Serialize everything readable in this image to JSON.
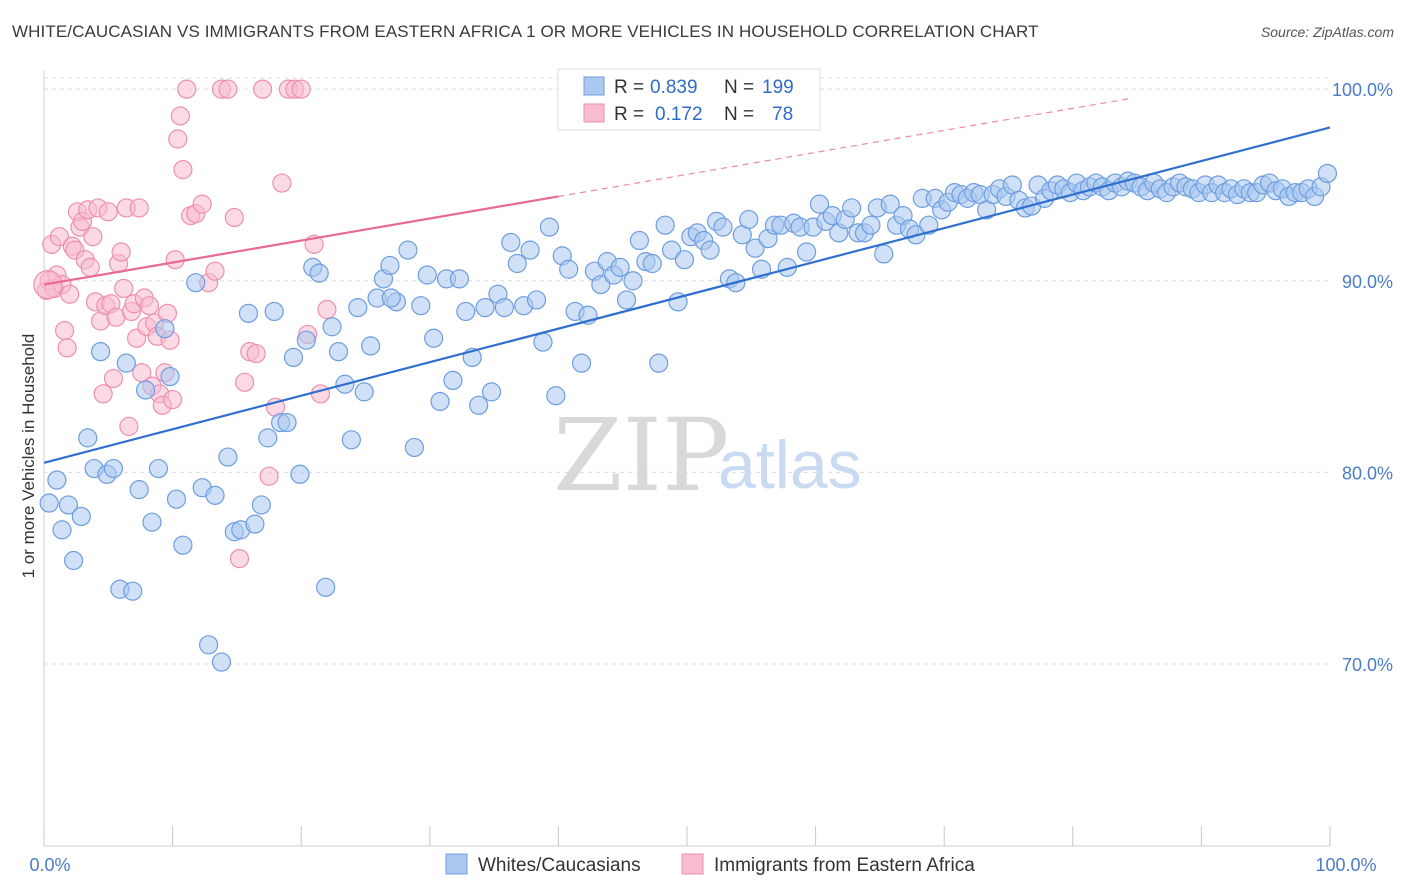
{
  "title": "WHITE/CAUCASIAN VS IMMIGRANTS FROM EASTERN AFRICA 1 OR MORE VEHICLES IN HOUSEHOLD CORRELATION CHART",
  "source": "Source: ZipAtlas.com",
  "watermark": {
    "zip": "ZIP",
    "atlas": "atlas"
  },
  "colors": {
    "blue_fill": "#aac8f0",
    "blue_stroke": "#6d9de0",
    "blue_line": "#2f6fcf",
    "pink_fill": "#f7bcd0",
    "pink_stroke": "#ee8fb0",
    "pink_line": "#e86a92",
    "grid": "#dcdcdc",
    "axis_text": "#4a7cc9"
  },
  "stats": [
    {
      "r_label": "R =",
      "r_value": "0.839",
      "n_label": "N =",
      "n_value": "199"
    },
    {
      "r_label": "R =",
      "r_value": "0.172",
      "n_label": "N =",
      "n_value": "78"
    }
  ],
  "chart_data": {
    "type": "scatter",
    "title": "WHITE/CAUCASIAN VS IMMIGRANTS FROM EASTERN AFRICA 1 OR MORE VEHICLES IN HOUSEHOLD CORRELATION CHART",
    "xlabel": "",
    "ylabel": "1 or more Vehicles in Household",
    "xlim": [
      0,
      100
    ],
    "ylim": [
      60.5,
      101
    ],
    "x_tick_labels": [
      "0.0%",
      "100.0%"
    ],
    "y_ticks": [
      70,
      80,
      90,
      100
    ],
    "y_tick_labels": [
      "70.0%",
      "80.0%",
      "90.0%",
      "100.0%"
    ],
    "grid": true,
    "legend_position": "bottom",
    "series": [
      {
        "name": "Whites/Caucasians",
        "color": "#aac8f0",
        "trend": {
          "x": [
            0,
            100
          ],
          "y": [
            80.5,
            98.0
          ]
        },
        "points": [
          [
            0.4,
            78.4
          ],
          [
            1,
            79.6
          ],
          [
            1.4,
            77
          ],
          [
            1.9,
            78.3
          ],
          [
            2.3,
            75.4
          ],
          [
            2.9,
            77.7
          ],
          [
            3.4,
            81.8
          ],
          [
            3.9,
            80.2
          ],
          [
            4.4,
            86.3
          ],
          [
            4.9,
            79.9
          ],
          [
            5.4,
            80.2
          ],
          [
            5.9,
            73.9
          ],
          [
            6.4,
            85.7
          ],
          [
            6.9,
            73.8
          ],
          [
            7.4,
            79.1
          ],
          [
            7.9,
            84.3
          ],
          [
            8.4,
            77.4
          ],
          [
            8.9,
            80.2
          ],
          [
            9.4,
            87.5
          ],
          [
            9.8,
            85
          ],
          [
            10.3,
            78.6
          ],
          [
            10.8,
            76.2
          ],
          [
            11.8,
            89.9
          ],
          [
            12.3,
            79.2
          ],
          [
            12.8,
            71
          ],
          [
            13.3,
            78.8
          ],
          [
            13.8,
            70.1
          ],
          [
            14.3,
            80.8
          ],
          [
            14.8,
            76.9
          ],
          [
            15.3,
            77
          ],
          [
            15.9,
            88.3
          ],
          [
            16.4,
            77.3
          ],
          [
            16.9,
            78.3
          ],
          [
            17.4,
            81.8
          ],
          [
            17.9,
            88.4
          ],
          [
            18.4,
            82.6
          ],
          [
            18.9,
            82.6
          ],
          [
            19.4,
            86
          ],
          [
            19.9,
            79.9
          ],
          [
            20.4,
            86.9
          ],
          [
            20.9,
            90.7
          ],
          [
            21.4,
            90.4
          ],
          [
            21.9,
            74
          ],
          [
            22.4,
            87.6
          ],
          [
            22.9,
            86.3
          ],
          [
            23.4,
            84.6
          ],
          [
            23.9,
            81.7
          ],
          [
            24.4,
            88.6
          ],
          [
            24.9,
            84.2
          ],
          [
            25.4,
            86.6
          ],
          [
            25.9,
            89.1
          ],
          [
            26.4,
            90.1
          ],
          [
            26.9,
            90.8
          ],
          [
            27.4,
            88.9
          ],
          [
            28.3,
            91.6
          ],
          [
            28.8,
            81.3
          ],
          [
            29.3,
            88.7
          ],
          [
            29.8,
            90.3
          ],
          [
            30.3,
            87
          ],
          [
            30.8,
            83.7
          ],
          [
            31.3,
            90.1
          ],
          [
            31.8,
            84.8
          ],
          [
            32.3,
            90.1
          ],
          [
            32.8,
            88.4
          ],
          [
            33.3,
            86
          ],
          [
            33.8,
            83.5
          ],
          [
            34.3,
            88.6
          ],
          [
            34.8,
            84.2
          ],
          [
            35.3,
            89.3
          ],
          [
            35.8,
            88.6
          ],
          [
            36.3,
            92
          ],
          [
            36.8,
            90.9
          ],
          [
            37.3,
            88.7
          ],
          [
            37.8,
            91.6
          ],
          [
            38.3,
            89
          ],
          [
            38.8,
            86.8
          ],
          [
            39.3,
            92.8
          ],
          [
            39.8,
            84
          ],
          [
            40.3,
            91.3
          ],
          [
            40.8,
            90.6
          ],
          [
            41.3,
            88.4
          ],
          [
            41.8,
            85.7
          ],
          [
            42.3,
            88.2
          ],
          [
            42.8,
            90.5
          ],
          [
            43.3,
            89.8
          ],
          [
            43.8,
            91
          ],
          [
            44.3,
            90.3
          ],
          [
            44.8,
            90.7
          ],
          [
            45.3,
            89
          ],
          [
            45.8,
            90
          ],
          [
            46.3,
            92.1
          ],
          [
            46.8,
            91
          ],
          [
            47.3,
            90.9
          ],
          [
            47.8,
            85.7
          ],
          [
            48.3,
            92.9
          ],
          [
            48.8,
            91.6
          ],
          [
            49.3,
            88.9
          ],
          [
            49.8,
            91.1
          ],
          [
            50.3,
            92.3
          ],
          [
            50.8,
            92.5
          ],
          [
            51.3,
            92.1
          ],
          [
            51.8,
            91.6
          ],
          [
            52.3,
            93.1
          ],
          [
            52.8,
            92.8
          ],
          [
            53.3,
            90.1
          ],
          [
            53.8,
            89.9
          ],
          [
            54.3,
            92.4
          ],
          [
            54.8,
            93.2
          ],
          [
            55.3,
            91.7
          ],
          [
            55.8,
            90.6
          ],
          [
            56.3,
            92.2
          ],
          [
            56.8,
            92.9
          ],
          [
            57.3,
            92.9
          ],
          [
            57.8,
            90.7
          ],
          [
            58.3,
            93
          ],
          [
            58.8,
            92.8
          ],
          [
            59.3,
            91.5
          ],
          [
            59.8,
            92.8
          ],
          [
            60.3,
            94
          ],
          [
            60.8,
            93.1
          ],
          [
            61.3,
            93.4
          ],
          [
            61.8,
            92.5
          ],
          [
            62.3,
            93.2
          ],
          [
            62.8,
            93.8
          ],
          [
            63.3,
            92.5
          ],
          [
            63.8,
            92.5
          ],
          [
            64.3,
            92.9
          ],
          [
            64.8,
            93.8
          ],
          [
            65.3,
            91.4
          ],
          [
            65.8,
            94
          ],
          [
            66.3,
            92.9
          ],
          [
            66.8,
            93.4
          ],
          [
            67.3,
            92.7
          ],
          [
            67.8,
            92.4
          ],
          [
            68.3,
            94.3
          ],
          [
            68.8,
            92.9
          ],
          [
            69.3,
            94.3
          ],
          [
            69.8,
            93.7
          ],
          [
            70.3,
            94.1
          ],
          [
            70.8,
            94.6
          ],
          [
            71.3,
            94.5
          ],
          [
            71.8,
            94.3
          ],
          [
            72.3,
            94.6
          ],
          [
            72.8,
            94.5
          ],
          [
            73.3,
            93.7
          ],
          [
            73.8,
            94.5
          ],
          [
            74.3,
            94.8
          ],
          [
            74.8,
            94.4
          ],
          [
            75.3,
            95
          ],
          [
            75.8,
            94.2
          ],
          [
            76.3,
            93.8
          ],
          [
            76.8,
            93.9
          ],
          [
            77.3,
            95
          ],
          [
            77.8,
            94.3
          ],
          [
            78.3,
            94.7
          ],
          [
            78.8,
            95
          ],
          [
            79.3,
            94.8
          ],
          [
            79.8,
            94.6
          ],
          [
            80.3,
            95.1
          ],
          [
            80.8,
            94.7
          ],
          [
            81.3,
            94.9
          ],
          [
            81.8,
            95.1
          ],
          [
            82.3,
            94.9
          ],
          [
            82.8,
            94.7
          ],
          [
            83.3,
            95.1
          ],
          [
            83.8,
            94.9
          ],
          [
            84.3,
            95.2
          ],
          [
            84.8,
            95.1
          ],
          [
            85.3,
            94.9
          ],
          [
            85.8,
            94.7
          ],
          [
            86.3,
            95.1
          ],
          [
            86.8,
            94.8
          ],
          [
            87.3,
            94.6
          ],
          [
            87.8,
            94.9
          ],
          [
            88.3,
            95.1
          ],
          [
            88.8,
            94.9
          ],
          [
            89.3,
            94.8
          ],
          [
            89.8,
            94.6
          ],
          [
            90.3,
            95
          ],
          [
            90.8,
            94.6
          ],
          [
            91.3,
            95
          ],
          [
            91.8,
            94.6
          ],
          [
            92.3,
            94.8
          ],
          [
            92.8,
            94.5
          ],
          [
            93.3,
            94.8
          ],
          [
            93.8,
            94.6
          ],
          [
            94.3,
            94.6
          ],
          [
            94.8,
            95
          ],
          [
            95.3,
            95.1
          ],
          [
            95.8,
            94.7
          ],
          [
            96.3,
            94.8
          ],
          [
            96.8,
            94.4
          ],
          [
            97.3,
            94.6
          ],
          [
            97.8,
            94.6
          ],
          [
            98.3,
            94.8
          ],
          [
            98.8,
            94.4
          ],
          [
            99.3,
            94.9
          ],
          [
            99.8,
            95.6
          ],
          [
            27,
            89.1
          ]
        ]
      },
      {
        "name": "Immigrants from Eastern Africa",
        "color": "#f7bcd0",
        "trend": {
          "x": [
            0,
            40
          ],
          "y": [
            89.8,
            94.4
          ]
        },
        "trend_dashed": {
          "x": [
            40,
            100
          ],
          "y": [
            94.4,
            101.3
          ]
        },
        "points": [
          [
            0.2,
            89.5
          ],
          [
            0.4,
            90
          ],
          [
            0.6,
            91.9
          ],
          [
            0.8,
            89.6
          ],
          [
            1,
            90.3
          ],
          [
            1.2,
            92.3
          ],
          [
            1.4,
            89.8
          ],
          [
            1.6,
            87.4
          ],
          [
            1.8,
            86.5
          ],
          [
            2,
            89.3
          ],
          [
            2.2,
            91.8
          ],
          [
            2.4,
            91.6
          ],
          [
            2.6,
            93.6
          ],
          [
            2.8,
            92.8
          ],
          [
            3,
            93.1
          ],
          [
            3.2,
            91.1
          ],
          [
            3.4,
            93.7
          ],
          [
            3.6,
            90.7
          ],
          [
            3.8,
            92.3
          ],
          [
            4,
            88.9
          ],
          [
            4.2,
            93.8
          ],
          [
            4.4,
            87.9
          ],
          [
            4.6,
            84.1
          ],
          [
            4.8,
            88.7
          ],
          [
            5,
            93.6
          ],
          [
            5.2,
            88.8
          ],
          [
            5.4,
            84.9
          ],
          [
            5.6,
            88.1
          ],
          [
            5.8,
            90.9
          ],
          [
            6,
            91.5
          ],
          [
            6.2,
            89.6
          ],
          [
            6.4,
            93.8
          ],
          [
            6.6,
            82.4
          ],
          [
            6.8,
            88.4
          ],
          [
            7,
            88.8
          ],
          [
            7.2,
            87
          ],
          [
            7.4,
            93.8
          ],
          [
            7.6,
            85.2
          ],
          [
            7.8,
            89.1
          ],
          [
            8,
            87.6
          ],
          [
            8.2,
            88.7
          ],
          [
            8.4,
            84.5
          ],
          [
            8.6,
            87.8
          ],
          [
            8.8,
            87.1
          ],
          [
            9,
            84.1
          ],
          [
            9.2,
            83.5
          ],
          [
            9.4,
            85.2
          ],
          [
            9.6,
            88.3
          ],
          [
            9.8,
            86.9
          ],
          [
            10,
            83.8
          ],
          [
            10.2,
            91.1
          ],
          [
            10.4,
            97.4
          ],
          [
            10.6,
            98.6
          ],
          [
            10.8,
            95.8
          ],
          [
            11.1,
            100
          ],
          [
            11.4,
            93.4
          ],
          [
            11.8,
            93.5
          ],
          [
            12.3,
            94
          ],
          [
            12.8,
            89.9
          ],
          [
            13.3,
            90.5
          ],
          [
            13.8,
            100
          ],
          [
            14.3,
            100
          ],
          [
            14.8,
            93.3
          ],
          [
            15.2,
            75.5
          ],
          [
            15.6,
            84.7
          ],
          [
            16,
            86.3
          ],
          [
            16.5,
            86.2
          ],
          [
            17,
            100
          ],
          [
            17.5,
            79.8
          ],
          [
            18,
            83.4
          ],
          [
            18.5,
            95.1
          ],
          [
            19,
            100
          ],
          [
            19.5,
            100
          ],
          [
            20,
            100
          ],
          [
            20.5,
            87.2
          ],
          [
            21,
            91.9
          ],
          [
            21.5,
            84.1
          ],
          [
            22,
            88.5
          ]
        ]
      }
    ]
  },
  "legend": {
    "series1": "Whites/Caucasians",
    "series2": "Immigrants from Eastern Africa"
  }
}
